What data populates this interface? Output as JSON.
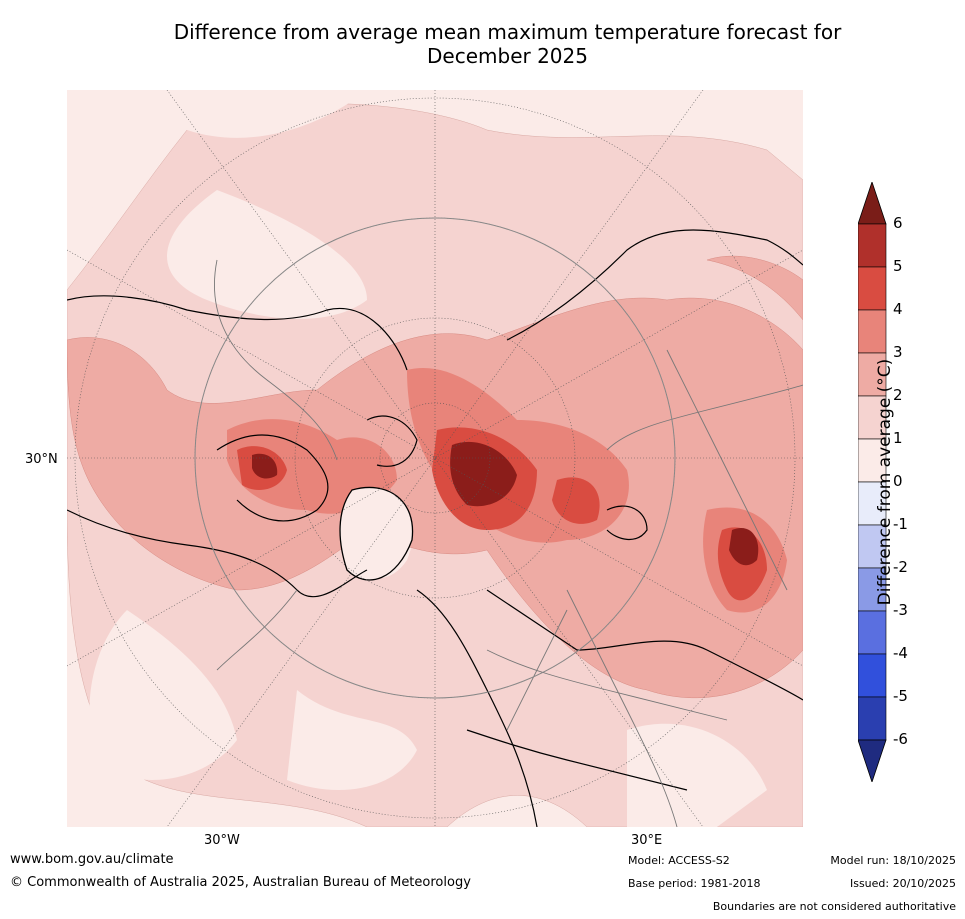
{
  "title_line1": "Difference from average mean maximum temperature forecast for",
  "title_line2": "December 2025",
  "map": {
    "lat_label": "30°N",
    "lon_labels": [
      "30°W",
      "30°E"
    ]
  },
  "colorbar": {
    "label": "Difference from average (°C)",
    "ticks": [
      "6",
      "5",
      "4",
      "3",
      "2",
      "1",
      "0",
      "-1",
      "-2",
      "-3",
      "-4",
      "-5",
      "-6"
    ],
    "colors": [
      "#8b1d1a",
      "#b0302b",
      "#d94c41",
      "#e8847a",
      "#eeaba4",
      "#f5d3d0",
      "#fbebe8",
      "#e8ecfa",
      "#c0c8f2",
      "#8a9ae6",
      "#5a6fe0",
      "#3150dc",
      "#2a3fb0",
      "#1e2a80"
    ],
    "max_extend_color": "#7a1d18",
    "min_extend_color": "#1f2b80"
  },
  "footer": {
    "website": "www.bom.gov.au/climate",
    "copyright": "© Commonwealth of Australia 2025, Australian Bureau of Meteorology",
    "model": "Model: ACCESS-S2",
    "base_period": "Base period: 1981-2018",
    "model_run": "Model run: 18/10/2025",
    "issued": "Issued: 20/10/2025",
    "disclaimer": "Boundaries are not considered authoritative"
  }
}
